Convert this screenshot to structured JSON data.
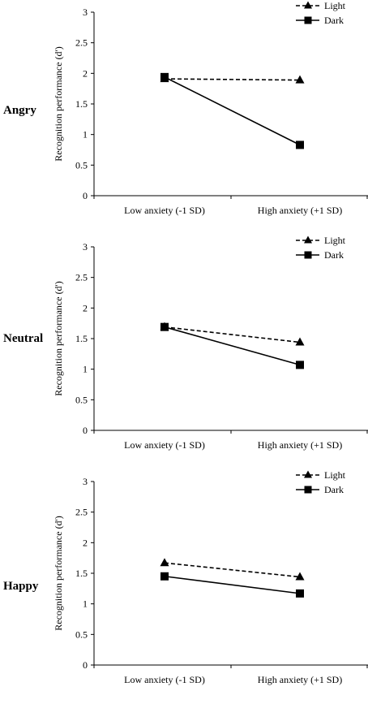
{
  "chart_data": [
    {
      "type": "line",
      "panel_label": "Angry",
      "categories": [
        "Low anxiety (-1 SD)",
        "High anxiety (+1 SD)"
      ],
      "ylabel": "Recognition performance (d')",
      "ylim": [
        0,
        3
      ],
      "yticks": [
        "0",
        "0.5",
        "1",
        "1.5",
        "2",
        "2.5",
        "3"
      ],
      "legend_position": "top-right",
      "series": [
        {
          "name": "Light",
          "marker": "triangle",
          "dash": "dashed",
          "values": [
            1.91,
            1.89
          ]
        },
        {
          "name": "Dark",
          "marker": "square",
          "dash": "solid",
          "values": [
            1.94,
            0.83
          ]
        }
      ]
    },
    {
      "type": "line",
      "panel_label": "Neutral",
      "categories": [
        "Low anxiety (-1 SD)",
        "High anxiety (+1 SD)"
      ],
      "ylabel": "Recognition performance (d')",
      "ylim": [
        0,
        3
      ],
      "yticks": [
        "0",
        "0.5",
        "1",
        "1.5",
        "2",
        "2.5",
        "3"
      ],
      "legend_position": "top-right",
      "series": [
        {
          "name": "Light",
          "marker": "triangle",
          "dash": "dashed",
          "values": [
            1.69,
            1.44
          ]
        },
        {
          "name": "Dark",
          "marker": "square",
          "dash": "solid",
          "values": [
            1.69,
            1.07
          ]
        }
      ]
    },
    {
      "type": "line",
      "panel_label": "Happy",
      "categories": [
        "Low anxiety (-1 SD)",
        "High anxiety (+1 SD)"
      ],
      "ylabel": "Recognition performance (d')",
      "ylim": [
        0,
        3
      ],
      "yticks": [
        "0",
        "0.5",
        "1",
        "1.5",
        "2",
        "2.5",
        "3"
      ],
      "legend_position": "top-right",
      "series": [
        {
          "name": "Light",
          "marker": "triangle",
          "dash": "dashed",
          "values": [
            1.67,
            1.44
          ]
        },
        {
          "name": "Dark",
          "marker": "square",
          "dash": "solid",
          "values": [
            1.45,
            1.17
          ]
        }
      ]
    }
  ]
}
